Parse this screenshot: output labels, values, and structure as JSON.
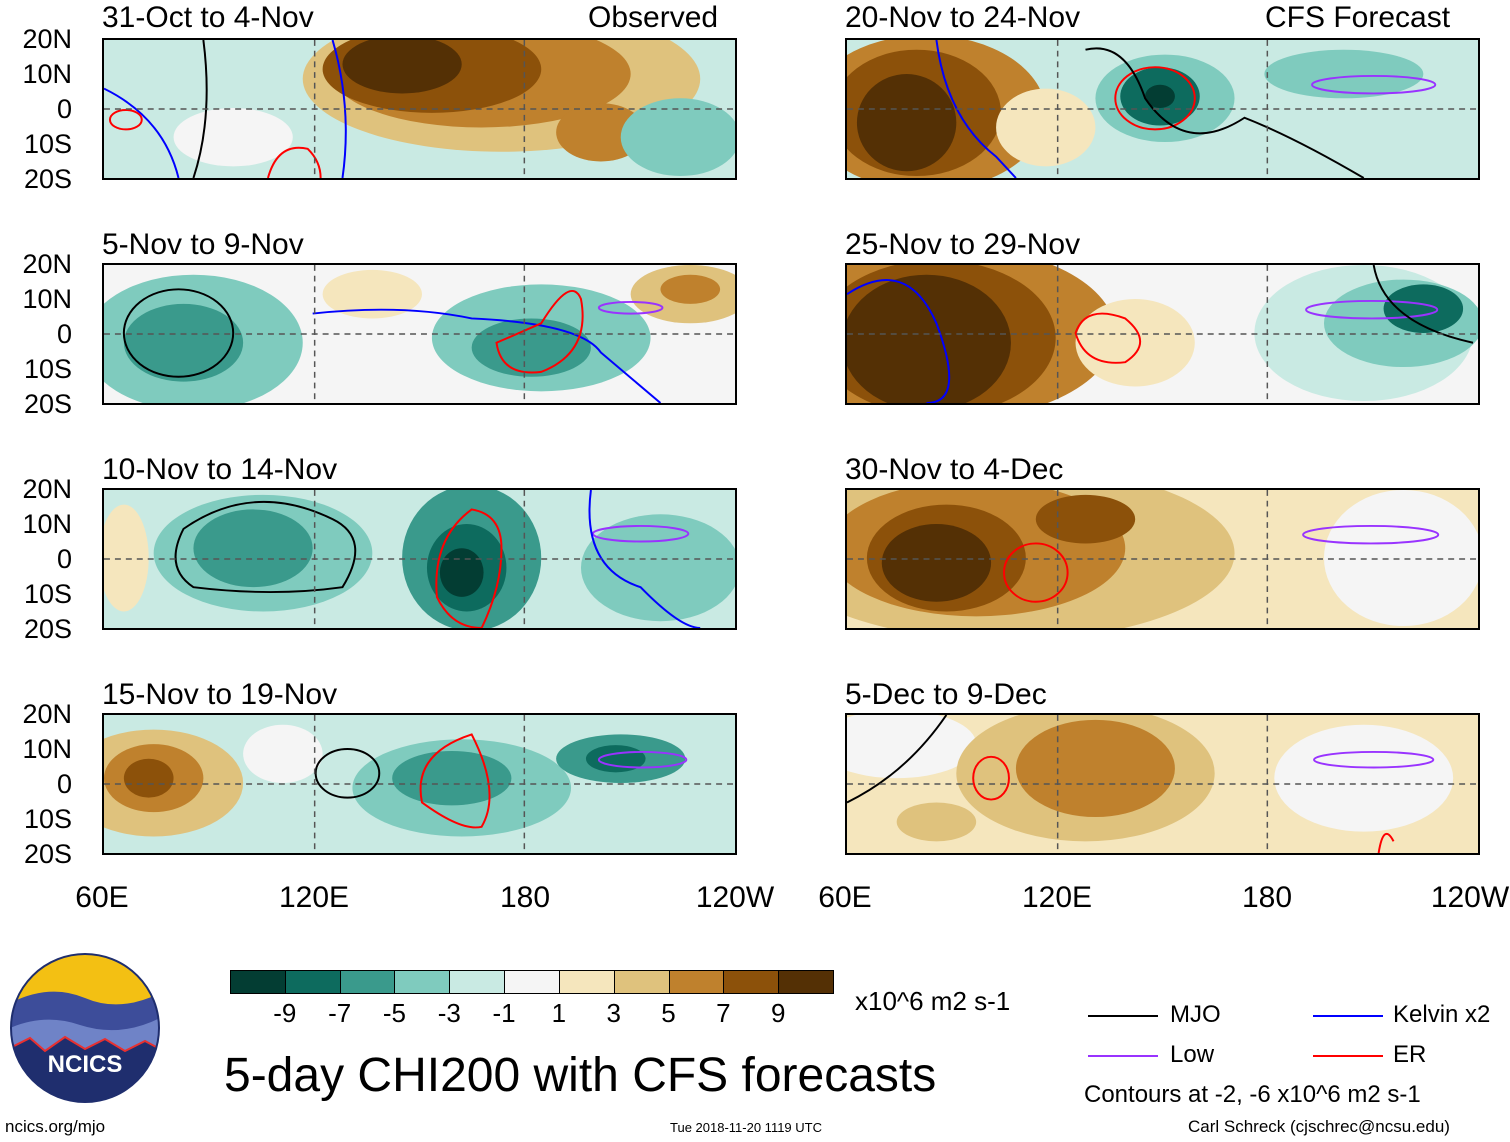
{
  "chart_data": {
    "type": "heatmap",
    "title": "5-day CHI200 with CFS forecasts",
    "units": "x10^6 m2 s-1",
    "contours_note": "Contours at -2, -6 x10^6 m2 s-1",
    "latitude_ticks": [
      "20N",
      "10N",
      "0",
      "10S",
      "20S"
    ],
    "longitude_ticks": [
      "60E",
      "120E",
      "180",
      "120W"
    ],
    "colorbar": {
      "labels": [
        "-9",
        "-7",
        "-5",
        "-3",
        "-1",
        "1",
        "3",
        "5",
        "7",
        "9"
      ],
      "colors": [
        "#033d33",
        "#0d6b5e",
        "#3a9a8c",
        "#7fcbbe",
        "#c9eae3",
        "#f5f5f5",
        "#f5e6bd",
        "#dfc27d",
        "#bf812d",
        "#8c510a",
        "#543005"
      ]
    },
    "columns": [
      {
        "label": "Observed",
        "panels": [
          "31-Oct to 4-Nov",
          "5-Nov to 9-Nov",
          "10-Nov to 14-Nov",
          "15-Nov to 19-Nov"
        ]
      },
      {
        "label": "CFS Forecast",
        "panels": [
          "20-Nov to 24-Nov",
          "25-Nov to 29-Nov",
          "30-Nov to 4-Dec",
          "5-Dec to 9-Dec"
        ]
      }
    ],
    "legend": [
      {
        "name": "MJO",
        "color": "#000000"
      },
      {
        "name": "Kelvin x2",
        "color": "#0000ff"
      },
      {
        "name": "Low",
        "color": "#9933ff"
      },
      {
        "name": "ER",
        "color": "#ff0000"
      }
    ]
  },
  "logo": {
    "text": "NCICS"
  },
  "footer": {
    "url": "ncics.org/mjo",
    "timestamp": "Tue 2018-11-20 1119 UTC",
    "author": "Carl Schreck (cjschrec@ncsu.edu)"
  }
}
